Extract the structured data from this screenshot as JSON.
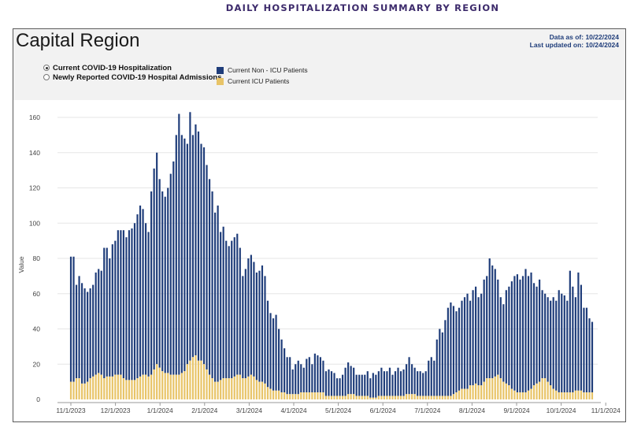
{
  "page_title": "DAILY HOSPITALIZATION SUMMARY BY REGION",
  "panel": {
    "region_title": "Capital Region",
    "data_as_of": "Data as of: 10/22/2024",
    "last_updated": "Last updated on: 10/24/2024"
  },
  "controls": {
    "options": [
      {
        "label": "Current COVID-19 Hospitalization",
        "checked": true
      },
      {
        "label": "Newly Reported COVID-19 Hospital Admissions",
        "checked": false
      }
    ]
  },
  "colors": {
    "non_icu": "#1f3d7a",
    "icu": "#e8c468"
  },
  "chart_data": {
    "type": "bar",
    "stacked": true,
    "ylabel": "Value",
    "ylim": [
      0,
      170
    ],
    "yticks": [
      0,
      20,
      40,
      60,
      80,
      100,
      120,
      140,
      160
    ],
    "xticks": [
      "11/1/2023",
      "12/1/2023",
      "1/1/2024",
      "2/1/2024",
      "3/1/2024",
      "4/1/2024",
      "5/1/2024",
      "6/1/2024",
      "7/1/2024",
      "8/1/2024",
      "9/1/2024",
      "10/1/2024",
      "11/1/2024"
    ],
    "legend": [
      "Current Non - ICU Patients",
      "Current ICU Patients"
    ],
    "series_totals": [
      81,
      81,
      65,
      70,
      66,
      63,
      61,
      63,
      65,
      72,
      74,
      73,
      86,
      86,
      80,
      88,
      90,
      96,
      96,
      96,
      92,
      96,
      97,
      100,
      105,
      110,
      108,
      100,
      95,
      118,
      131,
      140,
      125,
      118,
      115,
      120,
      128,
      135,
      150,
      162,
      150,
      148,
      145,
      163,
      150,
      156,
      152,
      145,
      143,
      133,
      125,
      118,
      106,
      110,
      95,
      98,
      90,
      87,
      90,
      92,
      94,
      86,
      70,
      74,
      80,
      82,
      78,
      72,
      73,
      76,
      70,
      56,
      49,
      46,
      48,
      40,
      34,
      29,
      24,
      24,
      17,
      20,
      22,
      20,
      18,
      23,
      24,
      20,
      26,
      25,
      24,
      22,
      16,
      17,
      16,
      15,
      12,
      12,
      14,
      18,
      21,
      19,
      18,
      14,
      14,
      14,
      14,
      16,
      12,
      15,
      14,
      16,
      18,
      16,
      16,
      18,
      14,
      16,
      18,
      16,
      17,
      20,
      24,
      20,
      18,
      16,
      16,
      15,
      16,
      22,
      24,
      22,
      34,
      40,
      38,
      45,
      52,
      55,
      53,
      50,
      52,
      56,
      58,
      60,
      56,
      62,
      64,
      58,
      60,
      68,
      70,
      80,
      76,
      74,
      68,
      58,
      54,
      62,
      64,
      67,
      70,
      71,
      68,
      70,
      74,
      70,
      72,
      66,
      64,
      68,
      62,
      60,
      58,
      56,
      58,
      56,
      62,
      60,
      59,
      56,
      73,
      64,
      58,
      72,
      65,
      52,
      52,
      46,
      44
    ],
    "series_icu": [
      10,
      10,
      12,
      12,
      9,
      9,
      10,
      12,
      13,
      14,
      15,
      14,
      12,
      13,
      13,
      13,
      14,
      14,
      14,
      12,
      11,
      11,
      11,
      11,
      12,
      13,
      14,
      14,
      13,
      14,
      17,
      20,
      18,
      16,
      15,
      15,
      14,
      14,
      14,
      14,
      15,
      16,
      20,
      22,
      24,
      25,
      22,
      22,
      20,
      17,
      14,
      12,
      10,
      10,
      11,
      12,
      12,
      12,
      12,
      13,
      14,
      14,
      12,
      12,
      13,
      14,
      13,
      11,
      10,
      10,
      9,
      7,
      6,
      5,
      5,
      5,
      4,
      4,
      3,
      3,
      3,
      3,
      3,
      4,
      4,
      4,
      4,
      4,
      4,
      4,
      4,
      4,
      2,
      2,
      2,
      2,
      2,
      2,
      2,
      2,
      3,
      3,
      3,
      2,
      2,
      2,
      2,
      2,
      1,
      1,
      1,
      2,
      2,
      2,
      2,
      2,
      2,
      2,
      2,
      2,
      2,
      3,
      3,
      3,
      3,
      2,
      2,
      2,
      2,
      2,
      2,
      2,
      2,
      2,
      2,
      2,
      2,
      2,
      3,
      4,
      5,
      6,
      6,
      6,
      8,
      8,
      9,
      8,
      8,
      10,
      12,
      12,
      12,
      13,
      14,
      12,
      10,
      9,
      8,
      6,
      5,
      4,
      4,
      4,
      4,
      5,
      6,
      8,
      9,
      10,
      12,
      12,
      10,
      8,
      6,
      5,
      4,
      4,
      4,
      4,
      4,
      4,
      5,
      5,
      5,
      4,
      4,
      4,
      4,
      3
    ]
  }
}
